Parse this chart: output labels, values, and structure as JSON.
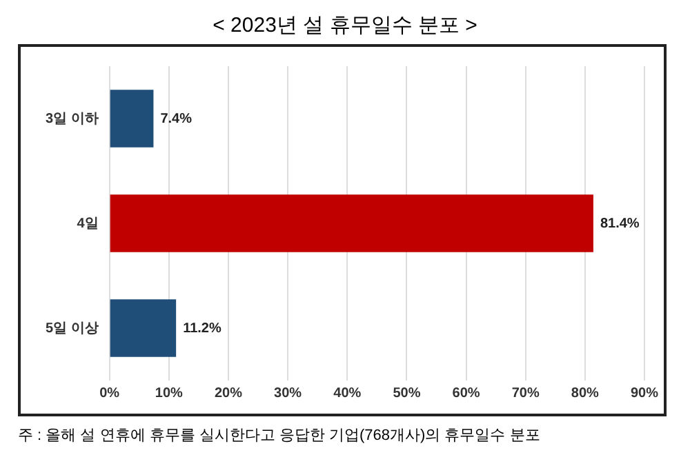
{
  "chart_data": {
    "type": "bar",
    "orientation": "horizontal",
    "title": "< 2023년 설 휴무일수 분포 >",
    "categories": [
      "3일 이하",
      "4일",
      "5일 이상"
    ],
    "values": [
      7.4,
      81.4,
      11.2
    ],
    "colors": [
      "#1f4e79",
      "#c00000",
      "#1f4e79"
    ],
    "xlim": [
      0,
      90
    ],
    "xticks": [
      {
        "value": 0,
        "label": "0%"
      },
      {
        "value": 10,
        "label": "10%"
      },
      {
        "value": 20,
        "label": "20%"
      },
      {
        "value": 30,
        "label": "30%"
      },
      {
        "value": 40,
        "label": "40%"
      },
      {
        "value": 50,
        "label": "50%"
      },
      {
        "value": 60,
        "label": "60%"
      },
      {
        "value": 70,
        "label": "70%"
      },
      {
        "value": 80,
        "label": "80%"
      },
      {
        "value": 90,
        "label": "90%"
      }
    ],
    "value_labels": [
      "7.4%",
      "81.4%",
      "11.2%"
    ],
    "grid": "x",
    "legend": false,
    "annotations": [
      "주 : 올해 설 연휴에 휴무를 실시한다고 응답한 기업(768개사)의 휴무일수 분포"
    ]
  }
}
